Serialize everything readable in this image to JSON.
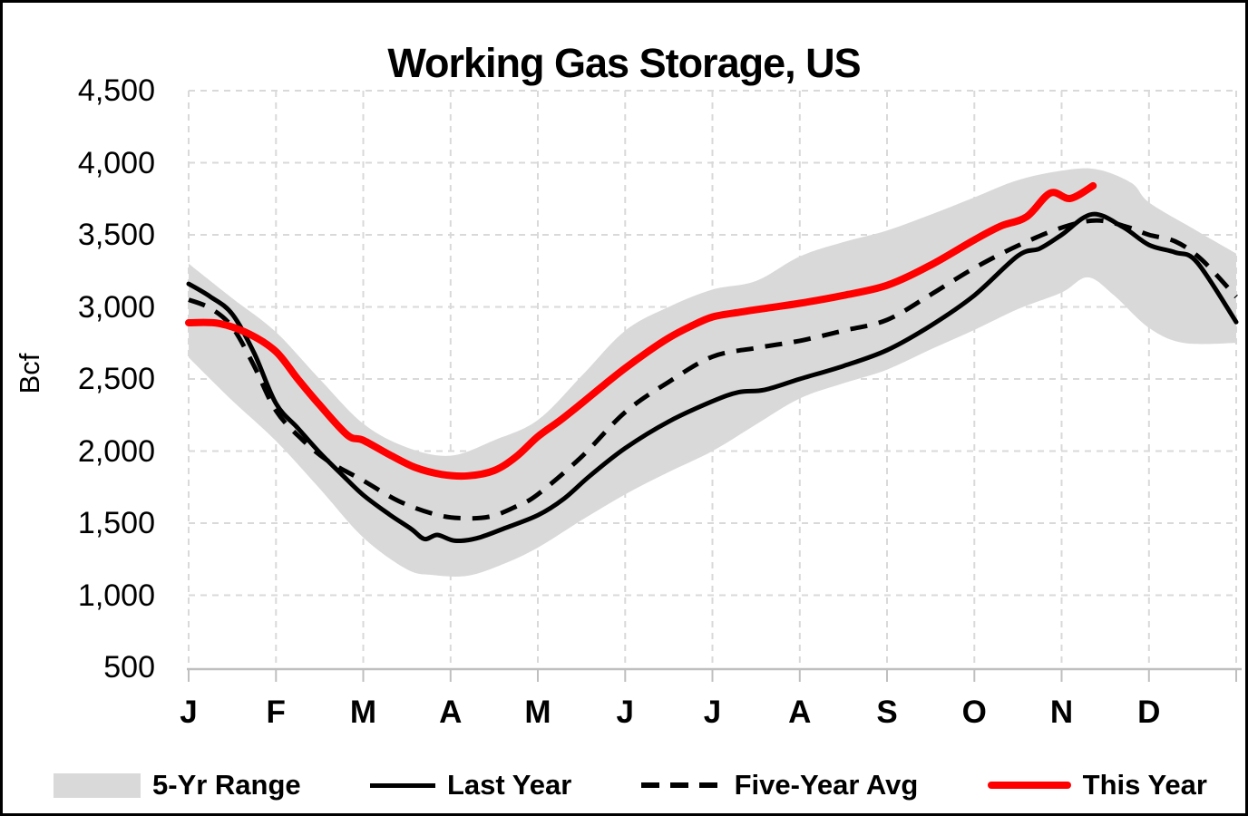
{
  "chart_data": {
    "type": "line",
    "title": "Working Gas Storage, US",
    "ylabel": "Bcf",
    "x_tick_labels": [
      "J",
      "F",
      "M",
      "A",
      "M",
      "J",
      "J",
      "A",
      "S",
      "O",
      "N",
      "D"
    ],
    "x_domain_months": [
      0,
      12
    ],
    "y_axis": {
      "min": 500,
      "max": 4500,
      "step": 500,
      "tick_labels": [
        "500",
        "1,000",
        "1,500",
        "2,000",
        "2,500",
        "3,000",
        "3,500",
        "4,000",
        "4,500"
      ]
    },
    "grid": {
      "color": "#d9d9d9",
      "axis_line_color": "#bfbfbf"
    },
    "band": {
      "name": "5-Yr Range",
      "color": "#d9d9d9",
      "top": [
        [
          0,
          3300
        ],
        [
          0.5,
          3060
        ],
        [
          1,
          2825
        ],
        [
          1.5,
          2500
        ],
        [
          2,
          2190
        ],
        [
          2.5,
          2025
        ],
        [
          3,
          1968
        ],
        [
          3.5,
          2075
        ],
        [
          4,
          2215
        ],
        [
          4.5,
          2520
        ],
        [
          5,
          2835
        ],
        [
          5.5,
          3000
        ],
        [
          6,
          3120
        ],
        [
          6.5,
          3180
        ],
        [
          7,
          3350
        ],
        [
          7.5,
          3450
        ],
        [
          8,
          3530
        ],
        [
          8.5,
          3640
        ],
        [
          9,
          3760
        ],
        [
          9.5,
          3880
        ],
        [
          10,
          3945
        ],
        [
          10.4,
          3955
        ],
        [
          10.8,
          3860
        ],
        [
          11,
          3725
        ],
        [
          11.5,
          3545
        ],
        [
          12,
          3370
        ]
      ],
      "bottom": [
        [
          0,
          2650
        ],
        [
          0.5,
          2350
        ],
        [
          1,
          2070
        ],
        [
          1.5,
          1740
        ],
        [
          2,
          1400
        ],
        [
          2.5,
          1180
        ],
        [
          2.8,
          1140
        ],
        [
          3.2,
          1135
        ],
        [
          3.6,
          1215
        ],
        [
          4,
          1330
        ],
        [
          4.5,
          1520
        ],
        [
          5,
          1700
        ],
        [
          5.5,
          1855
        ],
        [
          6,
          2000
        ],
        [
          6.5,
          2185
        ],
        [
          7,
          2365
        ],
        [
          7.5,
          2470
        ],
        [
          8,
          2565
        ],
        [
          8.5,
          2705
        ],
        [
          9,
          2840
        ],
        [
          9.5,
          2985
        ],
        [
          10,
          3100
        ],
        [
          10.3,
          3205
        ],
        [
          10.6,
          3080
        ],
        [
          11,
          2855
        ],
        [
          11.4,
          2750
        ],
        [
          12,
          2750
        ]
      ]
    },
    "series": [
      {
        "name": "Last Year",
        "color": "#000000",
        "width": 5,
        "dash": null,
        "points": [
          [
            0,
            3160
          ],
          [
            0.25,
            3070
          ],
          [
            0.5,
            2950
          ],
          [
            0.75,
            2680
          ],
          [
            1,
            2330
          ],
          [
            1.25,
            2160
          ],
          [
            1.5,
            1990
          ],
          [
            1.75,
            1840
          ],
          [
            2,
            1695
          ],
          [
            2.3,
            1560
          ],
          [
            2.55,
            1460
          ],
          [
            2.7,
            1390
          ],
          [
            2.85,
            1418
          ],
          [
            3.05,
            1378
          ],
          [
            3.3,
            1395
          ],
          [
            3.6,
            1460
          ],
          [
            4,
            1555
          ],
          [
            4.3,
            1670
          ],
          [
            4.6,
            1830
          ],
          [
            5,
            2020
          ],
          [
            5.5,
            2205
          ],
          [
            6,
            2345
          ],
          [
            6.3,
            2408
          ],
          [
            6.6,
            2425
          ],
          [
            7,
            2500
          ],
          [
            7.5,
            2590
          ],
          [
            8,
            2700
          ],
          [
            8.5,
            2870
          ],
          [
            9,
            3080
          ],
          [
            9.5,
            3355
          ],
          [
            9.75,
            3405
          ],
          [
            10,
            3500
          ],
          [
            10.35,
            3643
          ],
          [
            10.7,
            3555
          ],
          [
            11,
            3430
          ],
          [
            11.3,
            3378
          ],
          [
            11.55,
            3310
          ],
          [
            12,
            2895
          ]
        ]
      },
      {
        "name": "Five-Year Avg",
        "color": "#000000",
        "width": 5,
        "dash": "19 13",
        "points": [
          [
            0,
            3050
          ],
          [
            0.25,
            2990
          ],
          [
            0.5,
            2860
          ],
          [
            0.75,
            2590
          ],
          [
            1,
            2280
          ],
          [
            1.3,
            2080
          ],
          [
            1.6,
            1930
          ],
          [
            2,
            1795
          ],
          [
            2.4,
            1655
          ],
          [
            2.8,
            1565
          ],
          [
            3.1,
            1535
          ],
          [
            3.45,
            1545
          ],
          [
            3.75,
            1615
          ],
          [
            4,
            1700
          ],
          [
            4.5,
            1960
          ],
          [
            5,
            2270
          ],
          [
            5.5,
            2480
          ],
          [
            6,
            2655
          ],
          [
            6.5,
            2715
          ],
          [
            7,
            2765
          ],
          [
            7.5,
            2835
          ],
          [
            8,
            2910
          ],
          [
            8.5,
            3085
          ],
          [
            9,
            3270
          ],
          [
            9.5,
            3425
          ],
          [
            10,
            3550
          ],
          [
            10.4,
            3600
          ],
          [
            10.75,
            3555
          ],
          [
            11,
            3500
          ],
          [
            11.3,
            3455
          ],
          [
            11.6,
            3330
          ],
          [
            12,
            3070
          ]
        ]
      },
      {
        "name": "This Year",
        "color": "#ff0000",
        "width": 8,
        "dash": null,
        "points": [
          [
            0,
            2890
          ],
          [
            0.35,
            2885
          ],
          [
            0.7,
            2810
          ],
          [
            1,
            2690
          ],
          [
            1.25,
            2500
          ],
          [
            1.5,
            2320
          ],
          [
            1.82,
            2110
          ],
          [
            2,
            2075
          ],
          [
            2.3,
            1975
          ],
          [
            2.6,
            1885
          ],
          [
            2.9,
            1838
          ],
          [
            3.2,
            1828
          ],
          [
            3.5,
            1865
          ],
          [
            3.75,
            1960
          ],
          [
            4,
            2100
          ],
          [
            4.25,
            2210
          ],
          [
            4.5,
            2330
          ],
          [
            4.75,
            2455
          ],
          [
            5,
            2575
          ],
          [
            5.25,
            2685
          ],
          [
            5.5,
            2785
          ],
          [
            5.75,
            2865
          ],
          [
            6,
            2930
          ],
          [
            6.33,
            2965
          ],
          [
            6.66,
            2995
          ],
          [
            7,
            3025
          ],
          [
            7.5,
            3080
          ],
          [
            8,
            3150
          ],
          [
            8.5,
            3290
          ],
          [
            9,
            3465
          ],
          [
            9.3,
            3560
          ],
          [
            9.6,
            3625
          ],
          [
            9.87,
            3790
          ],
          [
            10.1,
            3752
          ],
          [
            10.36,
            3840
          ]
        ]
      }
    ],
    "legend": [
      {
        "label": "5-Yr Range",
        "swatch": "band"
      },
      {
        "label": "Last Year",
        "swatch": "solid-black"
      },
      {
        "label": "Five-Year Avg",
        "swatch": "dashed-black"
      },
      {
        "label": "This Year",
        "swatch": "solid-red"
      }
    ]
  }
}
